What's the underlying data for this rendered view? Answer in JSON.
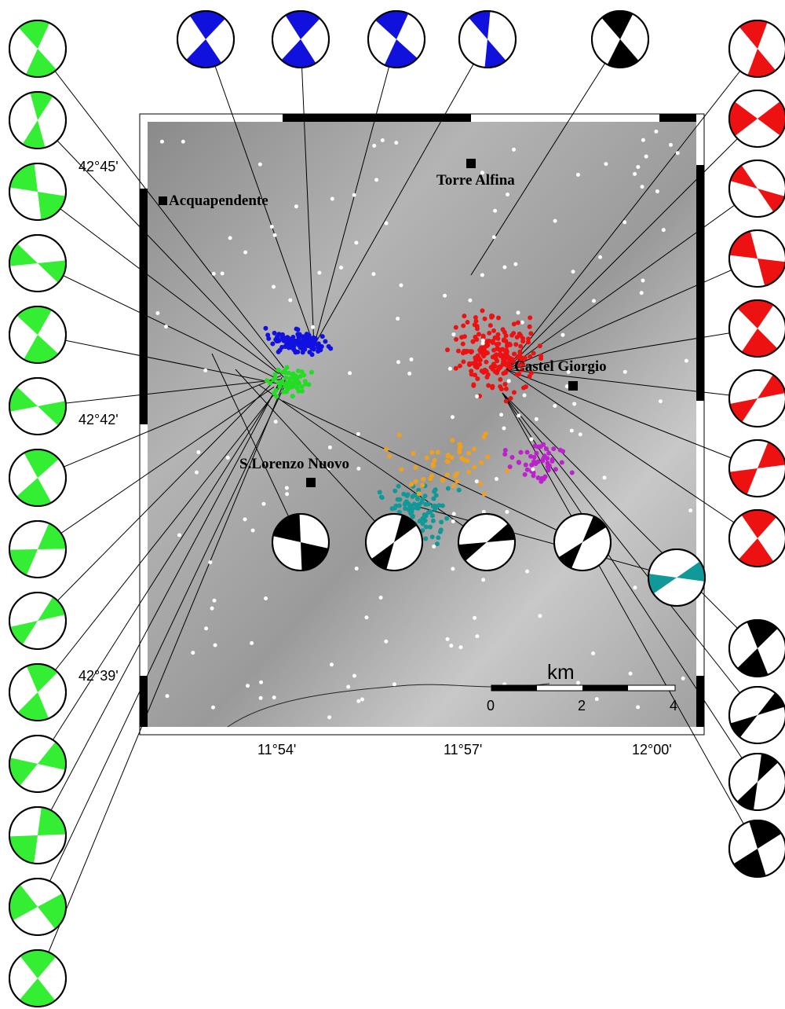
{
  "map": {
    "towns": [
      {
        "label": "Acquapendente"
      },
      {
        "label": "Torre Alfina"
      },
      {
        "label": "Castel Giorgio"
      },
      {
        "label": "S.Lorenzo Nuovo"
      }
    ],
    "lat_ticks": [
      "42°45'",
      "42°42'",
      "42°39'"
    ],
    "lon_ticks": [
      "11°54'",
      "11°57'",
      "12°00'"
    ],
    "scale": {
      "unit": "km",
      "ticks": [
        0,
        2,
        4
      ]
    }
  }
}
